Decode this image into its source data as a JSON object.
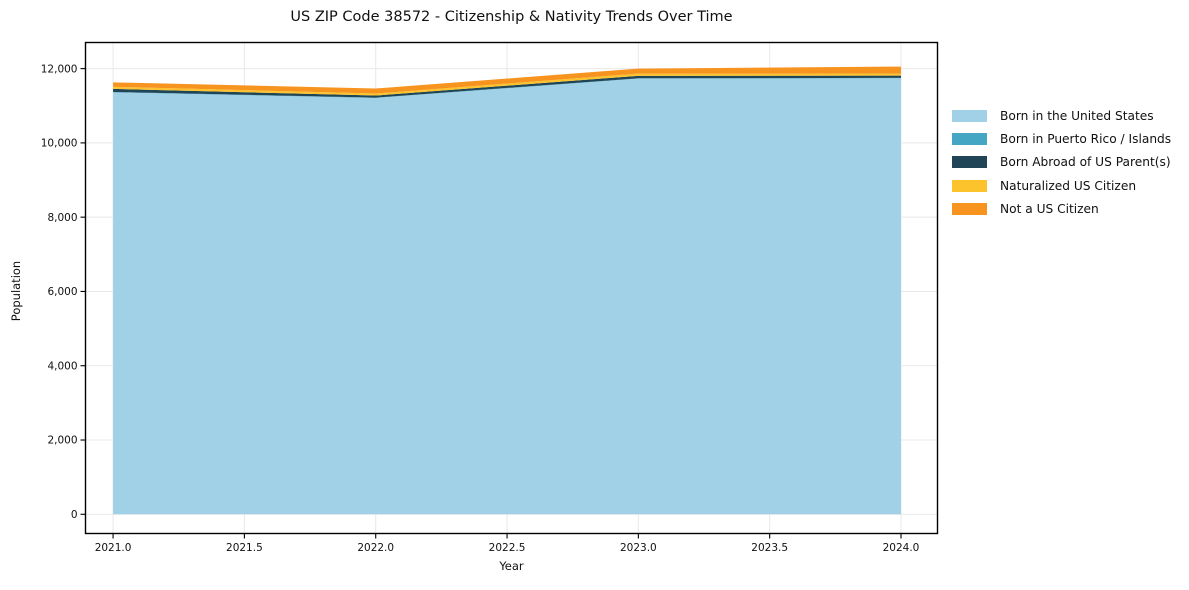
{
  "chart_data": {
    "type": "area",
    "stacked": true,
    "title": "US ZIP Code 38572 - Citizenship & Nativity Trends Over Time",
    "xlabel": "Year",
    "ylabel": "Population",
    "x": [
      2021,
      2022,
      2023,
      2024
    ],
    "series": [
      {
        "name": "Born in the United States",
        "color": "#a1d1e6",
        "values": [
          11360,
          11210,
          11730,
          11740
        ]
      },
      {
        "name": "Born in Puerto Rico / Islands",
        "color": "#45a6c4",
        "values": [
          10,
          10,
          10,
          10
        ]
      },
      {
        "name": "Born Abroad of US Parent(s)",
        "color": "#1f4557",
        "values": [
          85,
          55,
          65,
          60
        ]
      },
      {
        "name": "Naturalized US Citizen",
        "color": "#fcc32d",
        "values": [
          55,
          55,
          60,
          55
        ]
      },
      {
        "name": "Not a US Citizen",
        "color": "#f79420",
        "values": [
          120,
          135,
          135,
          190
        ]
      }
    ],
    "xticks": [
      2021.0,
      2021.5,
      2022.0,
      2022.5,
      2023.0,
      2023.5,
      2024.0
    ],
    "xtick_labels": [
      "2021.0",
      "2021.5",
      "2022.0",
      "2022.5",
      "2023.0",
      "2023.5",
      "2024.0"
    ],
    "yticks": [
      0,
      2000,
      4000,
      6000,
      8000,
      10000,
      12000
    ],
    "ytick_labels": [
      "0",
      "2,000",
      "4,000",
      "6,000",
      "8,000",
      "10,000",
      "12,000"
    ],
    "xlim": [
      2020.895,
      2024.139
    ],
    "ylim": [
      -517,
      12703
    ],
    "grid": true,
    "grid_color": "#e8e8e8",
    "spine_color": "#000000",
    "tick_label_color": "#111111",
    "legend_position": "right"
  }
}
